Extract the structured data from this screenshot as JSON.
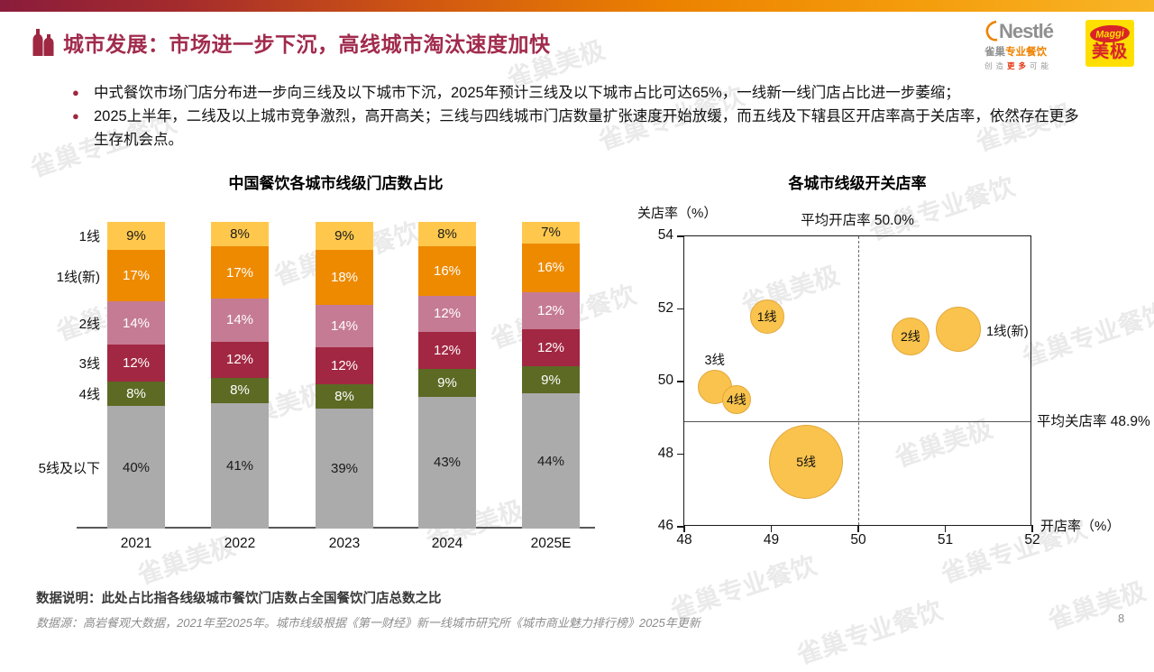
{
  "page": {
    "number": "8"
  },
  "header": {
    "title": "城市发展：市场进一步下沉，高线城市淘汰速度加快",
    "bullets": [
      "中式餐饮市场门店分布进一步向三线及以下城市下沉，2025年预计三线及以下城市占比可达65%，一线新一线门店占比进一步萎缩；",
      "2025上半年，二线及以上城市竞争激烈，高开高关；三线与四线城市门店数量扩张速度开始放缓，而五线及下辖县区开店率高于关店率，依然存在更多生存机会点。"
    ],
    "bullet_glyph": "●"
  },
  "logos": {
    "nestle_name": "Nestlé",
    "nestle_sub_a": "雀巢",
    "nestle_sub_b": "专业餐饮",
    "nestle_tag_a": "创造",
    "nestle_tag_b": "更多",
    "nestle_tag_c": "可能",
    "maggi_name": "Maggi",
    "maggi_sub": "美极"
  },
  "watermark": {
    "texts": [
      "雀巢专业餐饮",
      "雀巢美极"
    ]
  },
  "footnote": {
    "note": "数据说明：此处占比指各线级城市餐饮门店数占全国餐饮门店总数之比",
    "source": "数据源：高岩餐观大数据，2021年至2025年。城市线级根据《第一财经》新一线城市研究所《城市商业魅力排行榜》2025年更新"
  },
  "chart_data": [
    {
      "type": "bar",
      "stacked": true,
      "title": "中国餐饮各城市线级门店数占比",
      "unit": "%",
      "categories": [
        "2021",
        "2022",
        "2023",
        "2024",
        "2025E"
      ],
      "series": [
        {
          "name": "1线",
          "color": "#FFC84D",
          "text_color": "#1a1a1a",
          "values": [
            9,
            8,
            9,
            8,
            7
          ]
        },
        {
          "name": "1线(新)",
          "color": "#EE8A00",
          "text_color": "#ffffff",
          "values": [
            17,
            17,
            18,
            16,
            16
          ]
        },
        {
          "name": "2线",
          "color": "#C57B93",
          "text_color": "#ffffff",
          "values": [
            14,
            14,
            14,
            12,
            12
          ]
        },
        {
          "name": "3线",
          "color": "#A22742",
          "text_color": "#ffffff",
          "values": [
            12,
            12,
            12,
            12,
            12
          ]
        },
        {
          "name": "4线",
          "color": "#5C6A24",
          "text_color": "#ffffff",
          "values": [
            8,
            8,
            8,
            9,
            9
          ]
        },
        {
          "name": "5线及以下",
          "color": "#ABABAB",
          "text_color": "#1a1a1a",
          "values": [
            40,
            41,
            39,
            43,
            44
          ]
        }
      ]
    },
    {
      "type": "scatter",
      "title": "各城市线级开关店率",
      "xlabel": "开店率（%）",
      "ylabel": "关店率（%）",
      "xlim": [
        48,
        52
      ],
      "ylim": [
        46,
        54
      ],
      "xticks": [
        48,
        49,
        50,
        51,
        52
      ],
      "yticks": [
        54,
        52,
        50,
        48,
        46
      ],
      "avg_open_label": "平均开店率 50.0%",
      "avg_open_value": 50.0,
      "avg_close_label": "平均关店率 48.9%",
      "avg_close_value": 48.9,
      "bubble_color": "#F9C34D",
      "points": [
        {
          "name": "1线",
          "x": 48.95,
          "y": 51.8,
          "r": 19,
          "label_pos": "inside"
        },
        {
          "name": "3线",
          "x": 48.35,
          "y": 49.85,
          "r": 19,
          "label_pos": "above"
        },
        {
          "name": "4线",
          "x": 48.6,
          "y": 49.5,
          "r": 16,
          "label_pos": "inside"
        },
        {
          "name": "5线",
          "x": 49.4,
          "y": 47.8,
          "r": 41,
          "label_pos": "inside"
        },
        {
          "name": "2线",
          "x": 50.6,
          "y": 51.25,
          "r": 21,
          "label_pos": "inside"
        },
        {
          "name": "1线(新)",
          "x": 51.15,
          "y": 51.45,
          "r": 25,
          "label_pos": "right"
        }
      ]
    }
  ]
}
